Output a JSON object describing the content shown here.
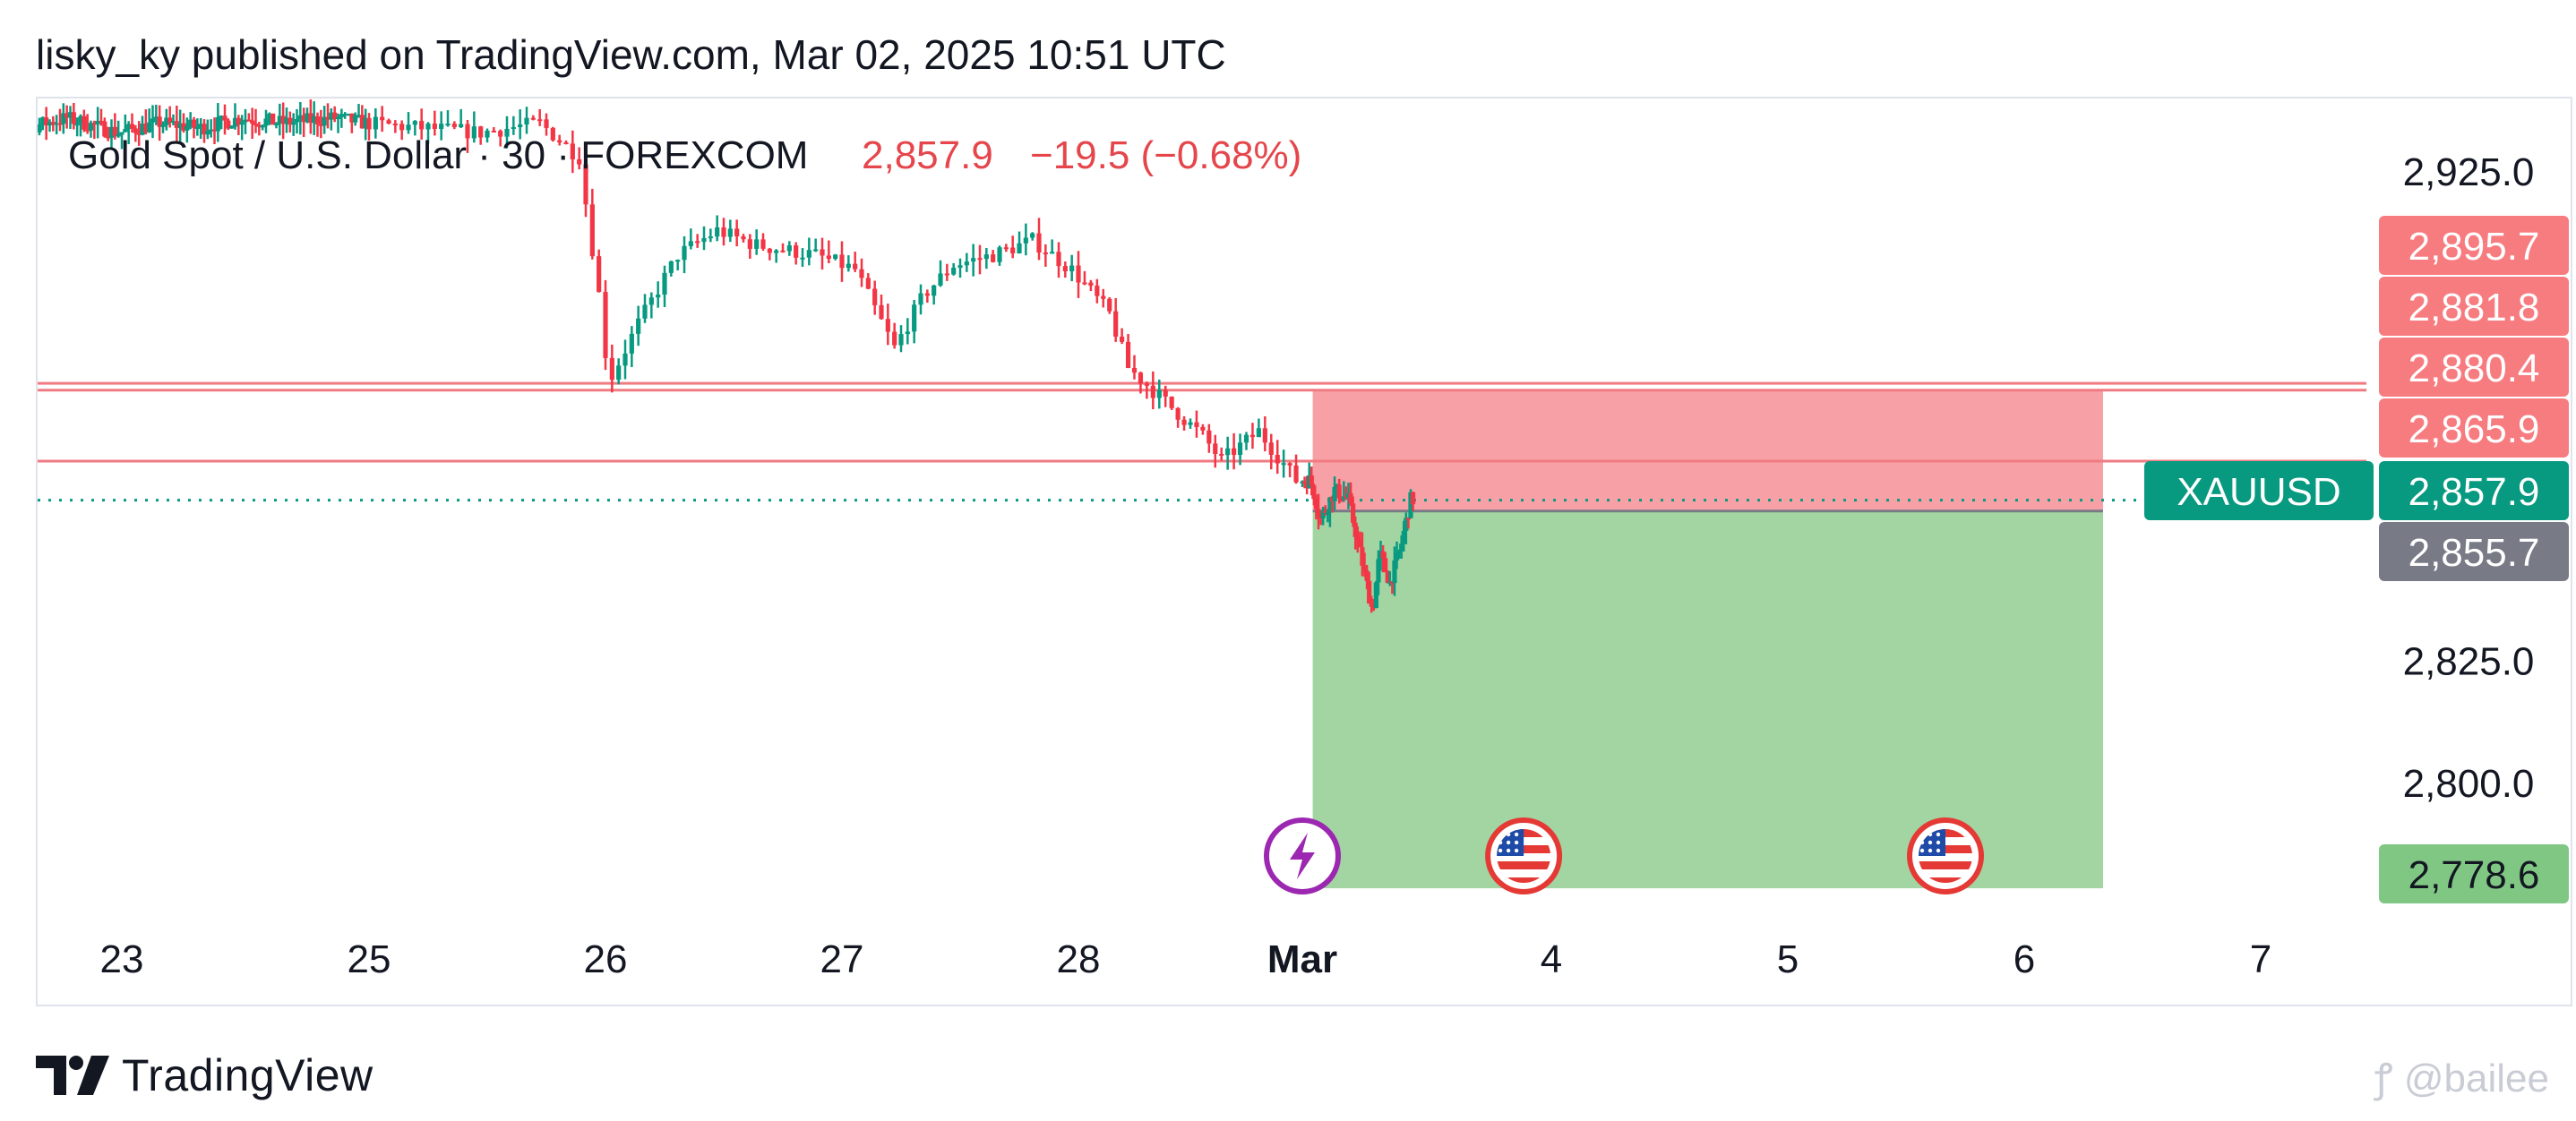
{
  "header": {
    "publish_line": "lisky_ky published on TradingView.com, Mar 02, 2025 10:51 UTC"
  },
  "legend": {
    "symbol_line": "Gold Spot / U.S. Dollar · 30 · FOREXCOM",
    "price": "2,857.9",
    "change": "−19.5 (−0.68%)",
    "change_color": "#e5464c"
  },
  "footer": {
    "brand": "TradingView",
    "watermark": "@bailee"
  },
  "chart_data": {
    "type": "candlestick",
    "x_tick_labels": [
      "23",
      "25",
      "26",
      "27",
      "28",
      "Mar",
      "4",
      "5",
      "6",
      "7"
    ],
    "x_tick_dates": [
      "2025-02-23",
      "2025-02-25",
      "2025-02-26",
      "2025-02-27",
      "2025-02-28",
      "2025-03-01",
      "2025-03-04",
      "2025-03-05",
      "2025-03-06",
      "2025-03-07"
    ],
    "y_tick_labels": [
      "2,925.0",
      "2,825.0",
      "2,800.0"
    ],
    "y_tick_values": [
      2925.0,
      2825.0,
      2800.0
    ],
    "ylim": [
      2768,
      2940
    ],
    "colors": {
      "up": "#089981",
      "down": "#f23645",
      "hline": "#f07b82"
    },
    "horizontal_lines": [
      2881.8,
      2880.4,
      2865.9
    ],
    "current_price": {
      "label": "XAUUSD",
      "value": 2857.9,
      "text": "2,857.9",
      "color": "#089981"
    },
    "price_labels": [
      {
        "text": "2,895.7",
        "value": 2895.7,
        "color": "#f77c80"
      },
      {
        "text": "2,881.8",
        "value": 2881.8,
        "color": "#f77c80"
      },
      {
        "text": "2,880.4",
        "value": 2880.4,
        "color": "#f77c80"
      },
      {
        "text": "2,865.9",
        "value": 2865.9,
        "color": "#f77c80"
      },
      {
        "text": "2,857.9",
        "value": 2857.9,
        "color": "#089981"
      },
      {
        "text": "2,855.7",
        "value": 2855.7,
        "color": "#787b86"
      },
      {
        "text": "2,778.6",
        "value": 2778.6,
        "color": "#81c784"
      }
    ],
    "short_position": {
      "entry": 2855.7,
      "stop": 2880.4,
      "target": 2778.6,
      "start": "2025-03-01T03:00",
      "end": "2025-03-06T08:00",
      "stop_color": "#f7a1a6",
      "target_color": "#a2d5a1"
    },
    "events": [
      {
        "type": "lightning",
        "date": "2025-03-01T00:00",
        "color": "#9c27b0"
      },
      {
        "type": "us-flag",
        "date": "2025-03-03T16:00"
      },
      {
        "type": "us-flag",
        "date": "2025-03-05T16:00"
      }
    ],
    "price_path": [
      [
        "2025-02-21T22:00",
        2935
      ],
      [
        "2025-02-22T06:00",
        2934
      ],
      [
        "2025-02-22T14:00",
        2936
      ],
      [
        "2025-02-23T00:00",
        2933
      ],
      [
        "2025-02-23T08:00",
        2935
      ],
      [
        "2025-02-23T16:00",
        2934
      ],
      [
        "2025-02-24T00:00",
        2936
      ],
      [
        "2025-02-24T08:00",
        2935
      ],
      [
        "2025-02-24T18:00",
        2936
      ],
      [
        "2025-02-25T06:00",
        2934
      ],
      [
        "2025-02-25T12:00",
        2933
      ],
      [
        "2025-02-25T18:00",
        2935
      ],
      [
        "2025-02-25T22:00",
        2928
      ],
      [
        "2025-02-26T00:00",
        2900
      ],
      [
        "2025-02-26T01:00",
        2882
      ],
      [
        "2025-02-26T04:00",
        2894
      ],
      [
        "2025-02-26T08:00",
        2908
      ],
      [
        "2025-02-26T12:00",
        2913
      ],
      [
        "2025-02-26T16:00",
        2910
      ],
      [
        "2025-02-26T22:00",
        2908
      ],
      [
        "2025-02-27T02:00",
        2905
      ],
      [
        "2025-02-27T06:00",
        2889
      ],
      [
        "2025-02-27T09:00",
        2900
      ],
      [
        "2025-02-27T12:00",
        2906
      ],
      [
        "2025-02-27T16:00",
        2908
      ],
      [
        "2025-02-27T20:00",
        2911
      ],
      [
        "2025-02-28T00:00",
        2905
      ],
      [
        "2025-02-28T04:00",
        2896
      ],
      [
        "2025-02-28T06:00",
        2885
      ],
      [
        "2025-02-28T10:00",
        2878
      ],
      [
        "2025-02-28T14:00",
        2871
      ],
      [
        "2025-02-28T16:00",
        2866
      ],
      [
        "2025-02-28T20:00",
        2872
      ],
      [
        "2025-03-01T00:00",
        2862
      ],
      [
        "2025-03-01T03:00",
        2862
      ],
      [
        "2025-03-01T06:00",
        2854
      ],
      [
        "2025-03-01T10:00",
        2860
      ],
      [
        "2025-03-01T14:00",
        2858
      ],
      [
        "2025-03-01T18:00",
        2845
      ],
      [
        "2025-03-01T21:00",
        2835
      ],
      [
        "2025-03-01T23:00",
        2847
      ],
      [
        "2025-03-02T02:00",
        2841
      ],
      [
        "2025-03-02T05:00",
        2848
      ],
      [
        "2025-03-02T08:00",
        2858
      ]
    ]
  }
}
